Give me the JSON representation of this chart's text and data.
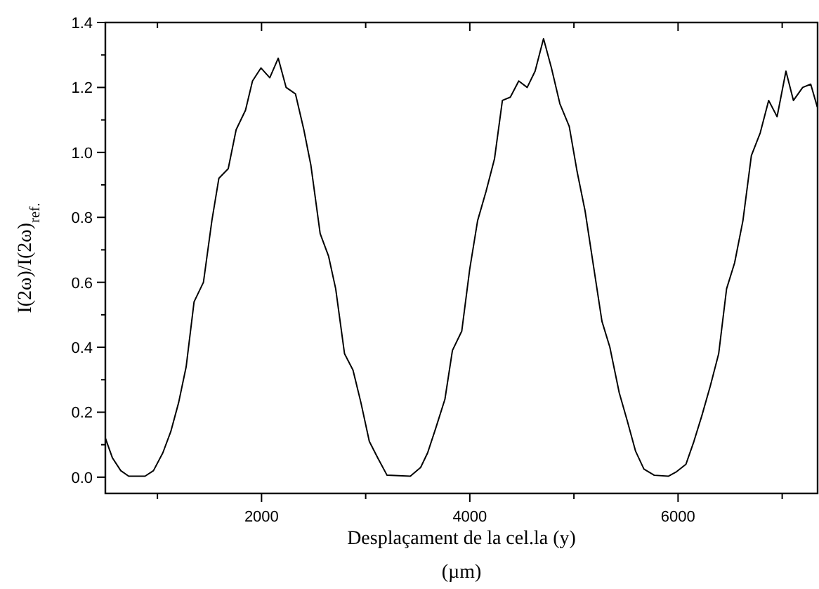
{
  "chart_data": {
    "type": "line",
    "xlabel": "Desplaçament de la cel.la (y)\n(µm)",
    "ylabel": "I(2ω)/I(2ω)$_{ref.}$",
    "xlim": [
      500,
      7340
    ],
    "ylim": [
      -0.05,
      1.4
    ],
    "xticks": [
      {
        "value": 1000,
        "label": null
      },
      2000,
      {
        "value": 3000,
        "label": null
      },
      4000,
      {
        "value": 5000,
        "label": null
      },
      6000,
      {
        "value": 7000,
        "label": null
      }
    ],
    "yticks": [
      {
        "value": 0,
        "label": "0.0"
      },
      {
        "value": 0.1,
        "label": null
      },
      0.2,
      {
        "value": 0.3,
        "label": null
      },
      0.4,
      {
        "value": 0.5,
        "label": null
      },
      0.6,
      {
        "value": 0.7,
        "label": null
      },
      0.8,
      {
        "value": 0.9,
        "label": null
      },
      {
        "value": 1,
        "label": "1.0"
      },
      {
        "value": 1.1,
        "label": null
      },
      1.2,
      {
        "value": 1.3,
        "label": null
      },
      1.4
    ],
    "grid": false,
    "marker": "none",
    "line_style": "solid",
    "series": [
      {
        "color": "#000000",
        "x": [
          500,
          567,
          648,
          724,
          881,
          962,
          1052,
          1128,
          1204,
          1276,
          1352,
          1442,
          1523,
          1590,
          1680,
          1756,
          1846,
          1913,
          1994,
          2079,
          2160,
          2236,
          2326,
          2406,
          2474,
          2563,
          2644,
          2712,
          2797,
          2878,
          2954,
          3035,
          3115,
          3205,
          3429,
          3528,
          3595,
          3672,
          3761,
          3833,
          3923,
          3999,
          4075,
          4156,
          4237,
          4313,
          4389,
          4470,
          4551,
          4627,
          4708,
          4784,
          4865,
          4955,
          5031,
          5107,
          5188,
          5269,
          5345,
          5435,
          5515,
          5592,
          5672,
          5771,
          5906,
          5986,
          6076,
          6152,
          6229,
          6309,
          6390,
          6466,
          6543,
          6623,
          6704,
          6789,
          6870,
          6951,
          7036,
          7108,
          7197,
          7274,
          7337
        ],
        "values": [
          0.12,
          0.06,
          0.02,
          0.003,
          0.003,
          0.02,
          0.075,
          0.14,
          0.23,
          0.34,
          0.54,
          0.6,
          0.79,
          0.92,
          0.95,
          1.07,
          1.13,
          1.22,
          1.26,
          1.23,
          1.29,
          1.2,
          1.18,
          1.07,
          0.96,
          0.75,
          0.68,
          0.58,
          0.38,
          0.33,
          0.23,
          0.11,
          0.06,
          0.006,
          0.003,
          0.03,
          0.075,
          0.15,
          0.24,
          0.39,
          0.45,
          0.64,
          0.79,
          0.88,
          0.98,
          1.16,
          1.17,
          1.22,
          1.2,
          1.25,
          1.35,
          1.26,
          1.15,
          1.08,
          0.94,
          0.82,
          0.65,
          0.48,
          0.4,
          0.26,
          0.17,
          0.08,
          0.025,
          0.006,
          0.003,
          0.017,
          0.04,
          0.11,
          0.19,
          0.28,
          0.38,
          0.58,
          0.66,
          0.79,
          0.99,
          1.06,
          1.16,
          1.11,
          1.25,
          1.16,
          1.2,
          1.21,
          1.14
        ]
      }
    ]
  }
}
